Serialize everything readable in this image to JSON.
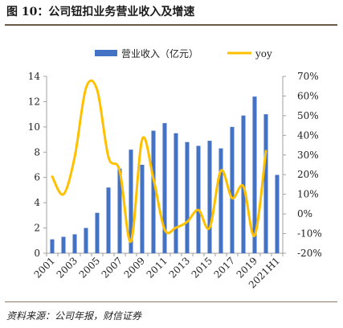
{
  "figure": {
    "title": "图 10：公司钮扣业务营业收入及增速",
    "source": "资料来源：公司年报，财信证券"
  },
  "colors": {
    "bar": "#4472C4",
    "line": "#FFC000",
    "axis": "#a0a0a0",
    "text": "#222222"
  },
  "chart_data": {
    "type": "bar",
    "title": "",
    "categories": [
      "2001",
      "2002",
      "2003",
      "2004",
      "2005",
      "2006",
      "2007",
      "2008",
      "2009",
      "2010",
      "2011",
      "2012",
      "2013",
      "2014",
      "2015",
      "2016",
      "2017",
      "2018",
      "2019",
      "2020",
      "2021H1"
    ],
    "x_tick_labels": [
      "2001",
      "2003",
      "2005",
      "2007",
      "2009",
      "2011",
      "2013",
      "2015",
      "2017",
      "2019",
      "2021H1"
    ],
    "series": [
      {
        "name": "营业收入（亿元）",
        "type": "bar",
        "axis": "left",
        "values": [
          1.1,
          1.3,
          1.5,
          2.0,
          3.2,
          5.2,
          6.7,
          8.2,
          7.0,
          9.7,
          10.3,
          9.5,
          8.8,
          8.5,
          8.9,
          8.3,
          10.0,
          10.9,
          12.4,
          11.0,
          6.2
        ]
      },
      {
        "name": "yoy",
        "type": "line",
        "axis": "right",
        "values": [
          19,
          10,
          29,
          64,
          63,
          29,
          22,
          -14,
          38,
          18,
          -8,
          -7,
          -4,
          2,
          -7,
          22,
          8,
          14,
          -11,
          32,
          null
        ]
      }
    ],
    "y_left": {
      "min": 0,
      "max": 14,
      "ticks": [
        0,
        2,
        4,
        6,
        8,
        10,
        12,
        14
      ]
    },
    "y_right": {
      "min": -20,
      "max": 70,
      "ticks": [
        "70%",
        "60%",
        "50%",
        "40%",
        "30%",
        "20%",
        "10%",
        "0%",
        "-10%",
        "-20%"
      ]
    },
    "legend_position": "top-center",
    "grid": false
  }
}
